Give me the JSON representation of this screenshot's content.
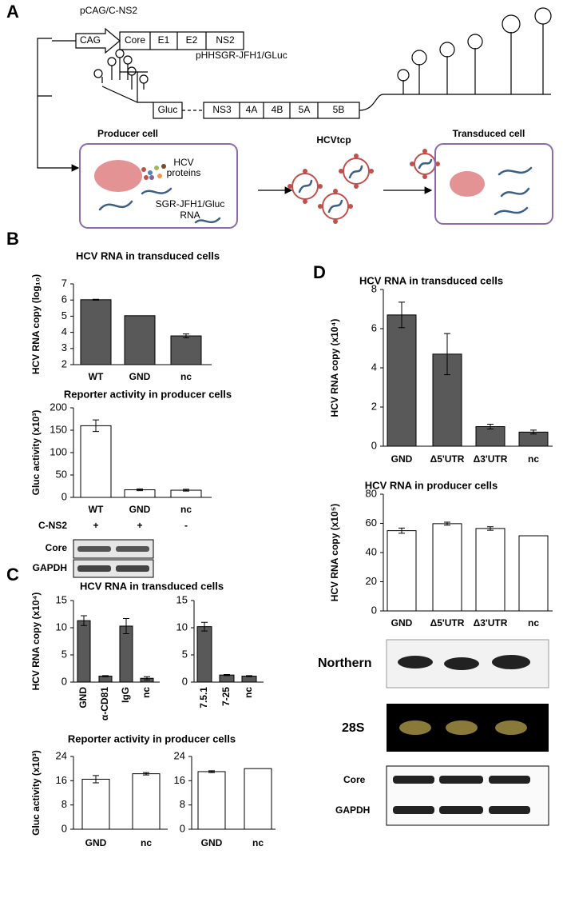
{
  "figure": {
    "panel_labels": [
      "A",
      "B",
      "C",
      "D"
    ],
    "construct_1": {
      "name": "pCAG/C-NS2",
      "promoter": "CAG",
      "segments": [
        "Core",
        "E1",
        "E2",
        "NS2"
      ]
    },
    "construct_2": {
      "name": "pHHSGR-JFH1/GLuc",
      "reporter": "Gluc",
      "segments": [
        "NS3",
        "4A",
        "4B",
        "5A",
        "5B"
      ]
    },
    "producer_cell": {
      "title": "Producer cell",
      "proteins": [
        "HCV",
        "proteins"
      ],
      "rna": [
        "SGR-JFH1/Gluc",
        "RNA"
      ]
    },
    "particle": "HCVtcp",
    "transduced_cell": {
      "title": "Transduced cell"
    }
  },
  "blots_b": {
    "row_label": "C-NS2",
    "signs": [
      "+",
      "+",
      "-"
    ],
    "labels": [
      "Core",
      "GAPDH"
    ]
  },
  "blots_d": {
    "labels": [
      "Northern",
      "28S",
      "Core",
      "GAPDH"
    ]
  },
  "chart_data": [
    {
      "type": "bar",
      "title": "HCV RNA in transduced cells",
      "y_label": "HCV RNA copy (log₁₀)",
      "categories": [
        "WT",
        "GND",
        "nc"
      ],
      "values": [
        6.02,
        5.03,
        3.78
      ],
      "errors": [
        0.03,
        null,
        0.12
      ],
      "color": "#595959",
      "ylim": [
        2,
        7
      ],
      "yticks": [
        2,
        3,
        4,
        5,
        6,
        7
      ]
    },
    {
      "type": "bar",
      "title": "Reporter activity in producer cells",
      "y_label": "Gluc activity (x10³)",
      "categories": [
        "WT",
        "GND",
        "nc"
      ],
      "values": [
        160,
        17,
        16
      ],
      "errors": [
        13,
        2,
        2
      ],
      "color": "#ffffff",
      "ylim": [
        0,
        200
      ],
      "yticks": [
        0,
        50,
        100,
        150,
        200
      ]
    },
    {
      "type": "bar",
      "title": "HCV RNA in transduced cells",
      "y_label": "HCV RNA copy (x10⁴)",
      "categories": [
        "GND",
        "α-CD81",
        "IgG",
        "nc"
      ],
      "values": [
        11.3,
        1.1,
        10.3,
        0.7
      ],
      "errors": [
        0.9,
        0.1,
        1.4,
        0.3
      ],
      "color": "#595959",
      "ylim": [
        0,
        15
      ],
      "yticks": [
        0,
        5,
        10,
        15
      ]
    },
    {
      "type": "bar",
      "categories": [
        "7.5.1",
        "7-25",
        "nc"
      ],
      "values": [
        10.2,
        1.3,
        1.1
      ],
      "errors": [
        0.8,
        0.1,
        0.1
      ],
      "color": "#595959",
      "ylim": [
        0,
        15
      ],
      "yticks": [
        0,
        5,
        10,
        15
      ]
    },
    {
      "type": "bar",
      "title": "Reporter activity in producer cells",
      "y_label": "Gluc activity (x10³)",
      "categories": [
        "GND",
        "nc"
      ],
      "values": [
        16.5,
        18.3
      ],
      "errors": [
        1.2,
        0.4
      ],
      "color": "#ffffff",
      "ylim": [
        0,
        24
      ],
      "yticks": [
        0,
        8,
        16,
        24
      ]
    },
    {
      "type": "bar",
      "categories": [
        "GND",
        "nc"
      ],
      "values": [
        19,
        20
      ],
      "errors": [
        0.3,
        null
      ],
      "color": "#ffffff",
      "ylim": [
        0,
        24
      ],
      "yticks": [
        0,
        8,
        16,
        24
      ]
    },
    {
      "type": "bar",
      "title": "HCV RNA in transduced cells",
      "y_label": "HCV RNA copy (x10⁴)",
      "categories": [
        "GND",
        "Δ5'UTR",
        "Δ3'UTR",
        "nc"
      ],
      "values": [
        6.7,
        4.7,
        1.0,
        0.72
      ],
      "errors": [
        0.65,
        1.05,
        0.12,
        0.1
      ],
      "color": "#595959",
      "ylim": [
        0,
        8
      ],
      "yticks": [
        0,
        2,
        4,
        6,
        8
      ]
    },
    {
      "type": "bar",
      "title": "HCV RNA in producer cells",
      "y_label": "HCV RNA copy (x10⁵)",
      "categories": [
        "GND",
        "Δ5'UTR",
        "Δ3'UTR",
        "nc"
      ],
      "values": [
        55,
        59.8,
        56.5,
        51.5
      ],
      "errors": [
        1.8,
        1,
        1.2,
        null
      ],
      "color": "#ffffff",
      "ylim": [
        0,
        80
      ],
      "yticks": [
        0,
        20,
        40,
        60,
        80
      ]
    }
  ]
}
